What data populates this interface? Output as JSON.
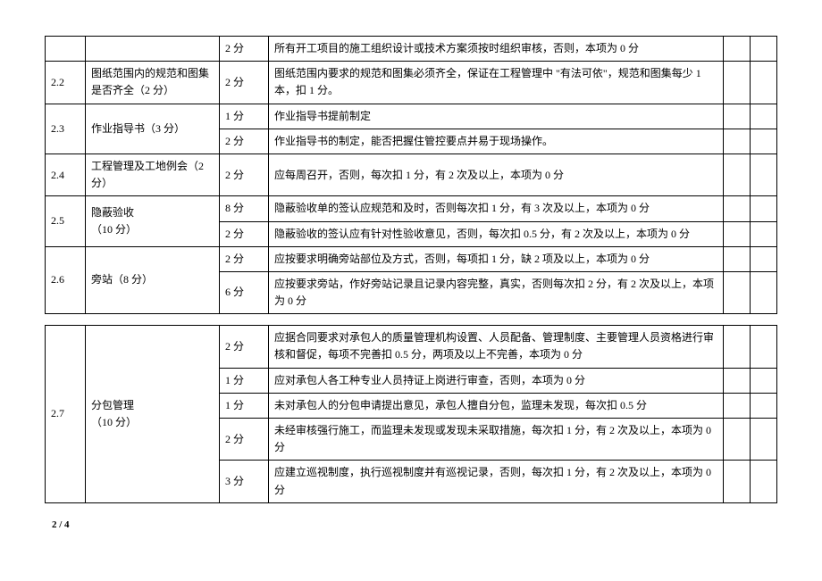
{
  "table1": {
    "rows": [
      {
        "no": "",
        "title": "",
        "score": "2 分",
        "desc": "所有开工项目的施工组织设计或技术方案须按时组织审核，否则，本项为 0 分"
      },
      {
        "no": "2.2",
        "title": "图纸范围内的规范和图集是否齐全（2 分）",
        "score": "2 分",
        "desc": "图纸范围内要求的规范和图集必须齐全，保证在工程管理中  \"有法可依\"，规范和图集每少 1 本，扣 1 分。"
      },
      {
        "no": "2.3",
        "title": "作业指导书（3 分）",
        "scores": [
          "1 分",
          "2 分"
        ],
        "descs": [
          "作业指导书提前制定",
          "作业指导书的制定，能否把握住管控要点并易于现场操作。"
        ]
      },
      {
        "no": "2.4",
        "title": "工程管理及工地例会（2 分）",
        "score": "2 分",
        "desc": "  应每周召开，否则，每次扣  1 分，有 2 次及以上，本项为 0 分"
      },
      {
        "no": "2.5",
        "title": "隐蔽验收\n（10 分）",
        "scores": [
          "8 分",
          "2 分"
        ],
        "descs": [
          "隐蔽验收单的签认应规范和及时，否则每次扣   1 分，有 3 次及以上，本项为 0 分",
          "隐蔽验收的签认应有针对性验收意见，否则，每次扣   0.5 分，有 2 次及以上，本项为  0 分"
        ]
      },
      {
        "no": "2.6",
        "title": "旁站（8 分）",
        "scores": [
          "2 分",
          "6 分"
        ],
        "descs": [
          "  应按要求明确旁站部位及方式，否则，每项扣   1 分，缺 2 项及以上，本项为 0 分",
          "  应按要求旁站，作好旁站记录且记录内容完整，真实，否则每次扣 2 分，有 2 次及以上，本项为 0 分"
        ]
      }
    ]
  },
  "table2": {
    "no": "2.7",
    "title": "分包管理\n（10 分）",
    "rows": [
      {
        "score": "2 分",
        "desc": "  应据合同要求对承包人的质量管理机构设置、人员配备、管理制度、主要管理人员资格进行审核和督促，每项不完善扣   0.5 分，两项及以上不完善，本项为 0 分"
      },
      {
        "score": "1 分",
        "desc": "  应对承包人各工种专业人员持证上岗进行审查，否则，本项为 0 分"
      },
      {
        "score": "1 分",
        "desc": "  未对承包人的分包申请提出意见，承包人擅自分包，监理未发现，每次扣 0.5 分"
      },
      {
        "score": "2 分",
        "desc": "  未经审核强行施工，而监理未发现或发现未采取措施，每次扣 1 分，有 2 次及以上，本项为  0 分"
      },
      {
        "score": "3 分",
        "desc": "  应建立巡视制度，执行巡视制度并有巡视记录，否则，每次扣 1 分，有 2 次及以上，本项为  0 分"
      }
    ]
  },
  "pageNum": "2 / 4"
}
